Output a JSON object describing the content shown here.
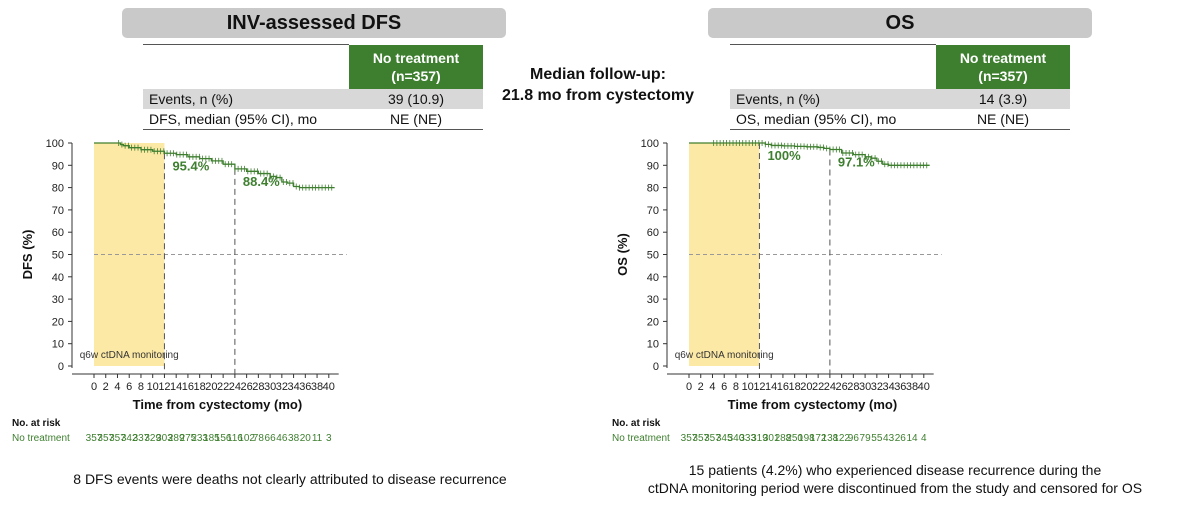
{
  "center": {
    "median_followup_line1": "Median follow-up:",
    "median_followup_line2": "21.8 mo from cystectomy"
  },
  "colors": {
    "curve": "#3e7f2f",
    "monitoring_band": "#fde9a6",
    "header_green": "#3e7f2f"
  },
  "panels": [
    {
      "title": "INV-assessed DFS",
      "table": {
        "header_line1": "No treatment",
        "header_line2": "(n=357)",
        "row1_label": "Events, n (%)",
        "row1_value": "39 (10.9)",
        "row2_label": "DFS, median (95% CI), mo",
        "row2_value": "NE (NE)"
      },
      "risk_title": "No. at risk",
      "risk_label": "No treatment",
      "footnote": [
        "8 DFS events were deaths not clearly attributed to disease recurrence"
      ]
    },
    {
      "title": "OS",
      "table": {
        "header_line1": "No treatment",
        "header_line2": "(n=357)",
        "row1_label": "Events, n (%)",
        "row1_value": "14 (3.9)",
        "row2_label": "OS, median (95% CI), mo",
        "row2_value": "NE (NE)"
      },
      "risk_title": "No. at risk",
      "risk_label": "No treatment",
      "footnote": [
        "15 patients (4.2%) who experienced disease recurrence during the",
        "ctDNA monitoring period were discontinued from the study and censored for OS"
      ]
    }
  ],
  "chart_data": [
    {
      "type": "line",
      "ylabel": "DFS (%)",
      "xlabel": "Time from cystectomy (mo)",
      "xlim": [
        0,
        41
      ],
      "ylim": [
        0,
        100
      ],
      "x_ticks": [
        0,
        2,
        4,
        6,
        8,
        10,
        12,
        14,
        16,
        18,
        20,
        22,
        24,
        26,
        28,
        30,
        32,
        34,
        36,
        38,
        40
      ],
      "y_ticks": [
        0,
        10,
        20,
        30,
        40,
        50,
        60,
        70,
        80,
        90,
        100
      ],
      "reference_line_y": 50,
      "milestones": [
        {
          "x": 12,
          "label": "95.4%"
        },
        {
          "x": 24,
          "label": "88.4%"
        }
      ],
      "band": {
        "x_start": 0,
        "x_end": 12,
        "label": "q6w ctDNA monitoring"
      },
      "series": [
        {
          "x": [
            0,
            4,
            4.5,
            5,
            6,
            8,
            10,
            12,
            14,
            16,
            18,
            20,
            22,
            24,
            26,
            28,
            30,
            31,
            32,
            33,
            34,
            35,
            36,
            38,
            41
          ],
          "y": [
            100,
            100,
            99.3,
            98.8,
            97.9,
            97,
            96.3,
            95.4,
            94.8,
            93.8,
            93,
            92,
            90.5,
            88.4,
            87.3,
            86.3,
            85,
            84.5,
            82.5,
            82,
            80.5,
            80,
            80,
            80,
            80
          ]
        }
      ],
      "at_risk": [
        357,
        357,
        357,
        342,
        337,
        329,
        303,
        289,
        275,
        233,
        185,
        156,
        116,
        102,
        78,
        66,
        46,
        38,
        20,
        11,
        3
      ]
    },
    {
      "type": "line",
      "ylabel": "OS (%)",
      "xlabel": "Time from cystectomy (mo)",
      "xlim": [
        0,
        41
      ],
      "ylim": [
        0,
        100
      ],
      "x_ticks": [
        0,
        2,
        4,
        6,
        8,
        10,
        12,
        14,
        16,
        18,
        20,
        22,
        24,
        26,
        28,
        30,
        32,
        34,
        36,
        38,
        40
      ],
      "y_ticks": [
        0,
        10,
        20,
        30,
        40,
        50,
        60,
        70,
        80,
        90,
        100
      ],
      "reference_line_y": 50,
      "milestones": [
        {
          "x": 12,
          "label": "100%"
        },
        {
          "x": 24,
          "label": "97.1%"
        }
      ],
      "band": {
        "x_start": 0,
        "x_end": 12,
        "label": "q6w ctDNA monitoring"
      },
      "series": [
        {
          "x": [
            0,
            12,
            13,
            14,
            16,
            18,
            20,
            22,
            23,
            24,
            26,
            28,
            30,
            31,
            32,
            33,
            34,
            36,
            38,
            41
          ],
          "y": [
            100,
            100,
            99.4,
            98.9,
            98.7,
            98.5,
            98.3,
            98,
            97.6,
            97.1,
            95.5,
            94.8,
            93.8,
            93.2,
            91.8,
            90.5,
            90,
            90,
            90,
            90
          ]
        }
      ],
      "at_risk": [
        357,
        357,
        357,
        345,
        340,
        333,
        319,
        301,
        288,
        250,
        198,
        172,
        138,
        122,
        96,
        79,
        55,
        43,
        26,
        14,
        4
      ]
    }
  ]
}
